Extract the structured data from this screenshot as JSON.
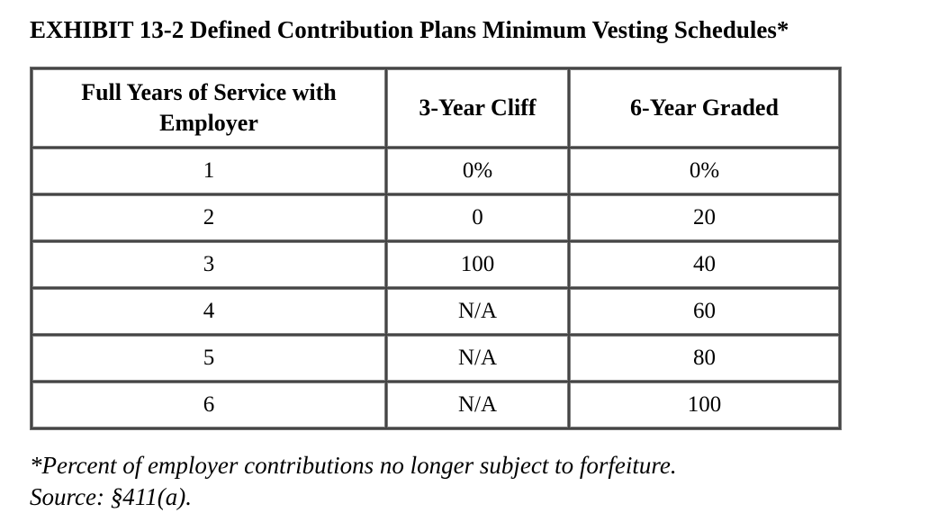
{
  "title": "EXHIBIT 13-2 Defined Contribution Plans Minimum Vesting Schedules*",
  "table": {
    "columns": [
      "Full Years of Service with Employer",
      "3-Year Cliff",
      "6-Year Graded"
    ],
    "rows": [
      [
        "1",
        "0%",
        "0%"
      ],
      [
        "2",
        "0",
        "20"
      ],
      [
        "3",
        "100",
        "40"
      ],
      [
        "4",
        "N/A",
        "60"
      ],
      [
        "5",
        "N/A",
        "80"
      ],
      [
        "6",
        "N/A",
        "100"
      ]
    ]
  },
  "footnote": "*Percent of employer contributions no longer subject to forfeiture.",
  "source": "Source: §411(a).",
  "colors": {
    "text": "#000000",
    "background": "#ffffff",
    "border_dark": "#454545",
    "border_light": "#7d7d7d"
  }
}
